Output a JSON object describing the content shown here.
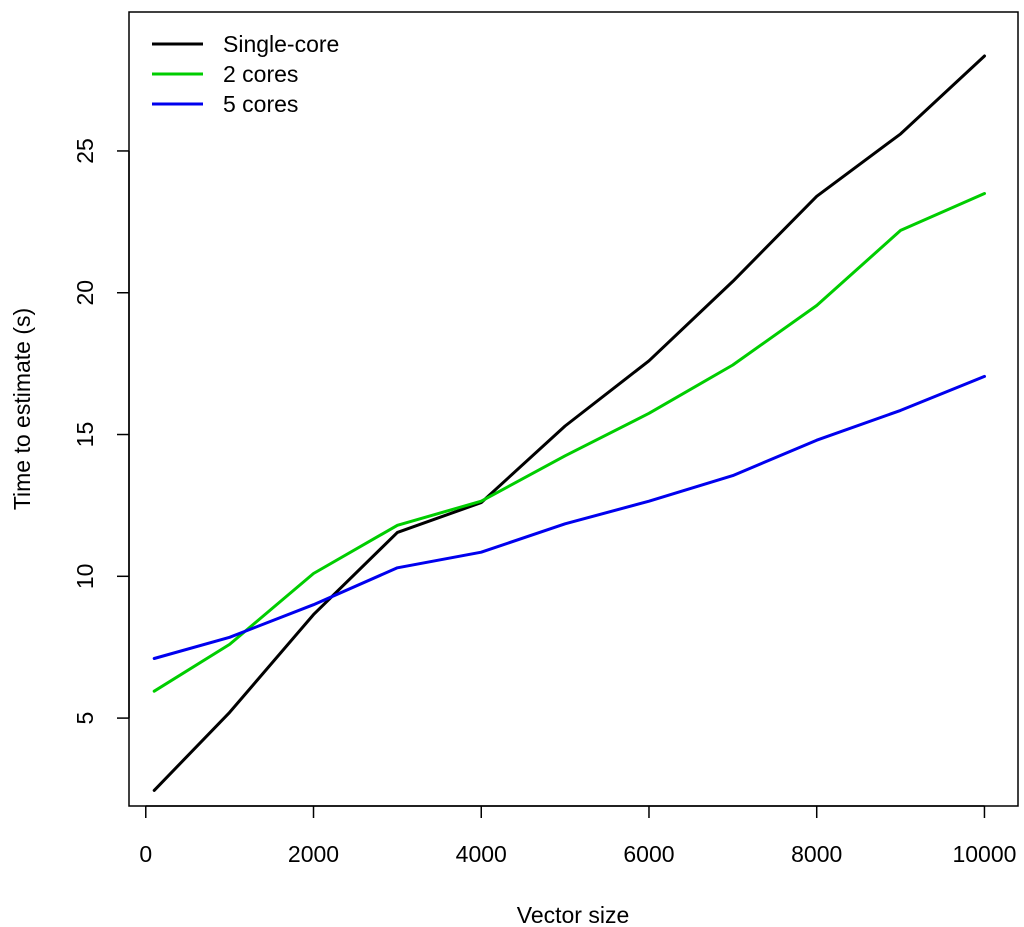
{
  "chart_data": {
    "type": "line",
    "title": "",
    "xlabel": "Vector size",
    "ylabel": "Time to estimate (s)",
    "xlim": [
      -200,
      10400
    ],
    "ylim": [
      1.9,
      29.9
    ],
    "x_ticks": [
      0,
      2000,
      4000,
      6000,
      8000,
      10000
    ],
    "x_tick_labels": [
      "0",
      "2000",
      "4000",
      "6000",
      "8000",
      "10000"
    ],
    "y_ticks": [
      5,
      10,
      15,
      20,
      25
    ],
    "y_tick_labels": [
      "5",
      "10",
      "15",
      "20",
      "25"
    ],
    "grid": false,
    "legend_position": "top-left",
    "x": [
      100,
      1000,
      2000,
      3000,
      4000,
      5000,
      6000,
      7000,
      8000,
      9000,
      10000
    ],
    "series": [
      {
        "name": "Single-core",
        "color": "#000000",
        "values": [
          2.45,
          5.2,
          8.65,
          11.55,
          12.6,
          15.3,
          17.6,
          20.4,
          23.4,
          25.6,
          28.35
        ]
      },
      {
        "name": "2 cores",
        "color": "#00cd00",
        "values": [
          5.95,
          7.6,
          10.1,
          11.8,
          12.65,
          14.25,
          15.75,
          17.45,
          19.55,
          22.2,
          23.5
        ]
      },
      {
        "name": "5 cores",
        "color": "#0000ee",
        "values": [
          7.1,
          7.85,
          9.0,
          10.3,
          10.85,
          11.85,
          12.65,
          13.55,
          14.8,
          15.85,
          17.05
        ]
      }
    ]
  }
}
